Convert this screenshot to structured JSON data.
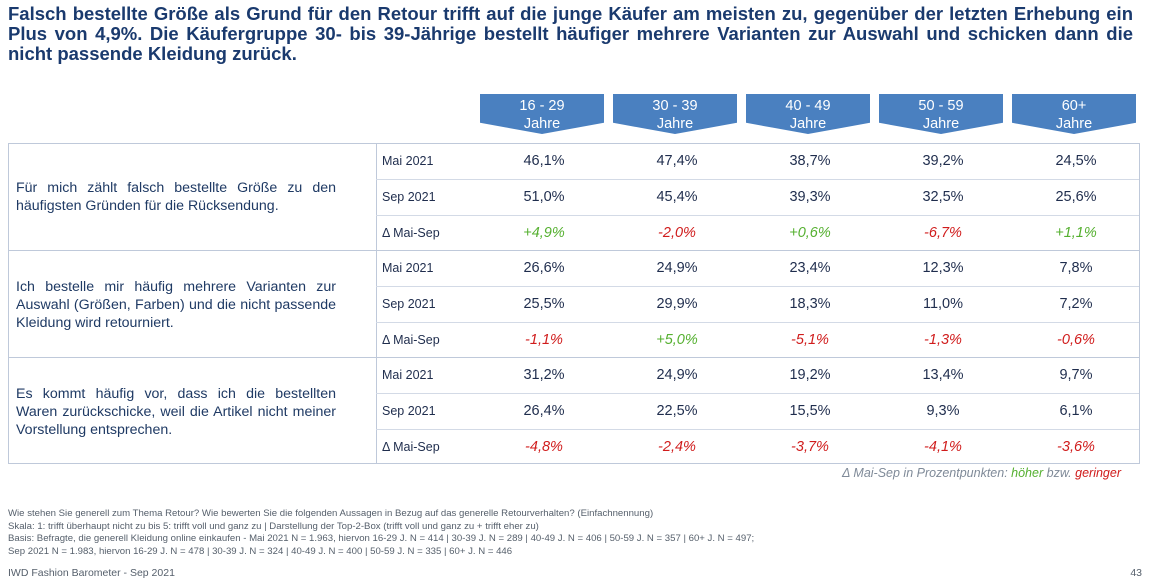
{
  "title": "Falsch bestellte Größe als Grund für den Retour trifft auf die junge Käufer am meisten zu, gegenüber der letzten Erhebung ein Plus von 4,9%. Die Käufergruppe 30- bis 39-Jährige bestellt häufiger mehrere Varianten zur Auswahl und schicken dann die nicht passende Kleidung zurück.",
  "columns": [
    {
      "line1": "16 - 29",
      "line2": "Jahre"
    },
    {
      "line1": "30 - 39",
      "line2": "Jahre"
    },
    {
      "line1": "40 - 49",
      "line2": "Jahre"
    },
    {
      "line1": "50 - 59",
      "line2": "Jahre"
    },
    {
      "line1": "60+",
      "line2": "Jahre"
    }
  ],
  "row_labels": {
    "may": "Mai 2021",
    "sep": "Sep 2021",
    "delta": "Δ Mai-Sep"
  },
  "groups": [
    {
      "statement": "Für mich zählt falsch bestellte Größe zu den häufigsten Gründen für die Rücksendung.",
      "may": [
        "46,1%",
        "47,4%",
        "38,7%",
        "39,2%",
        "24,5%"
      ],
      "sep": [
        "51,0%",
        "45,4%",
        "39,3%",
        "32,5%",
        "25,6%"
      ],
      "delta": [
        "+4,9%",
        "-2,0%",
        "+0,6%",
        "-6,7%",
        "+1,1%"
      ]
    },
    {
      "statement": "Ich bestelle mir häufig mehrere Varianten zur Auswahl (Größen, Farben) und die nicht passende Kleidung wird retourniert.",
      "may": [
        "26,6%",
        "24,9%",
        "23,4%",
        "12,3%",
        "7,8%"
      ],
      "sep": [
        "25,5%",
        "29,9%",
        "18,3%",
        "11,0%",
        "7,2%"
      ],
      "delta": [
        "-1,1%",
        "+5,0%",
        "-5,1%",
        "-1,3%",
        "-0,6%"
      ]
    },
    {
      "statement": "Es kommt häufig vor, dass ich die bestellten Waren zurückschicke, weil die Artikel nicht meiner Vorstellung entsprechen.",
      "may": [
        "31,2%",
        "24,9%",
        "19,2%",
        "13,4%",
        "9,7%"
      ],
      "sep": [
        "26,4%",
        "22,5%",
        "15,5%",
        "9,3%",
        "6,1%"
      ],
      "delta": [
        "-4,8%",
        "-2,4%",
        "-3,7%",
        "-4,1%",
        "-3,6%"
      ]
    }
  ],
  "legend": {
    "prefix": "Δ Mai-Sep in Prozentpunkten:",
    "higher": "höher",
    "middle": "bzw.",
    "lower": "geringer"
  },
  "footnotes": [
    "Wie stehen Sie generell zum Thema Retour? Wie bewerten Sie die folgenden Aussagen in Bezug auf das generelle Retourverhalten? (Einfachnennung)",
    "Skala: 1: trifft überhaupt nicht zu bis 5: trifft voll und ganz zu | Darstellung der Top-2-Box (trifft voll und ganz zu + trifft eher zu)",
    "Basis: Befragte, die generell Kleidung online einkaufen - Mai 2021 N = 1.963, hiervon 16-29 J. N = 414 | 30-39 J. N = 289 | 40-49 J. N = 406 | 50-59 J. N = 357 | 60+ J. N = 497;",
    "Sep 2021 N = 1.983, hiervon 16-29 J. N = 478 | 30-39 J. N = 324 | 40-49 J. N = 400 | 50-59 J. N = 335 | 60+ J. N = 446"
  ],
  "brand": "IWD Fashion Barometer - Sep 2021",
  "page_number": "43",
  "colors": {
    "header_bg": "#4a80c0",
    "positive": "#55b030",
    "negative": "#d01c1c",
    "title": "#1a3a6e"
  }
}
